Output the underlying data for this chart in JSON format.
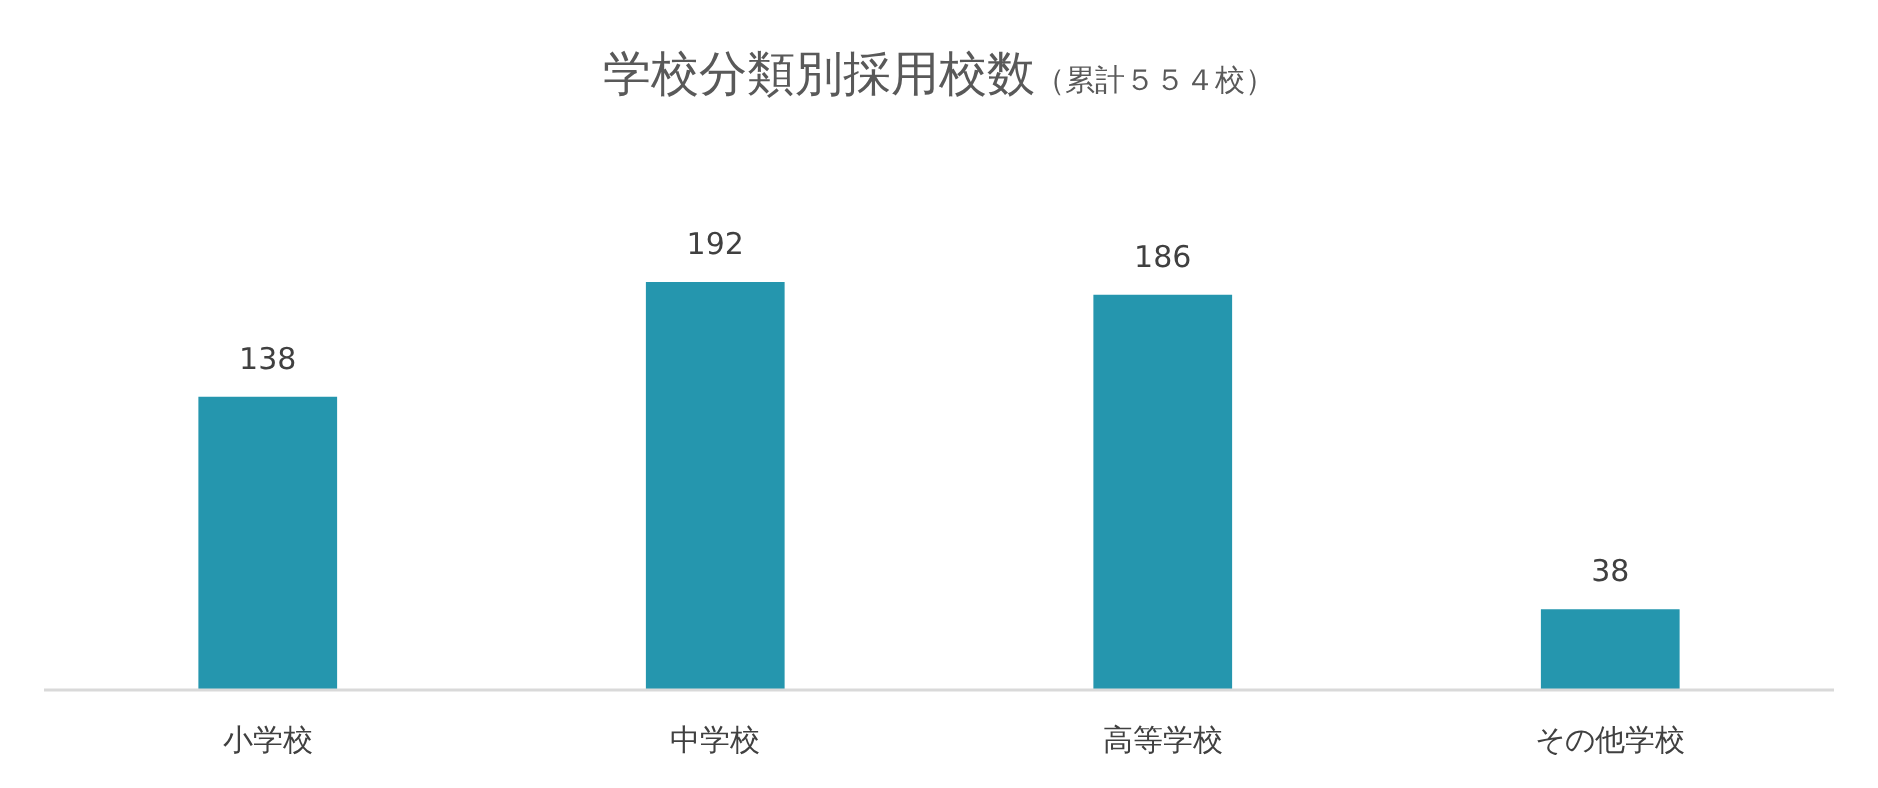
{
  "chart_data": {
    "type": "bar",
    "title": "学校分類別採用校数",
    "subtitle": "（累計５５４校）",
    "categories": [
      "小学校",
      "中学校",
      "高等学校",
      "その他学校"
    ],
    "values": [
      138,
      192,
      186,
      38
    ],
    "color": "#2596ae",
    "data_labels": true
  }
}
